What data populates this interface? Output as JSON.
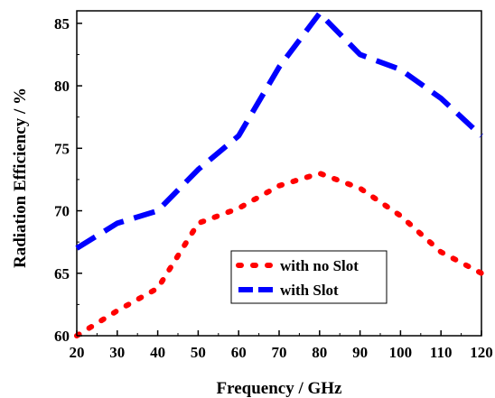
{
  "chart_data": {
    "type": "line",
    "xlabel": "Frequency / GHz",
    "ylabel": "Radiation Efficiency / %",
    "xlim": [
      20,
      120
    ],
    "ylim": [
      60,
      86
    ],
    "xticks": [
      20,
      30,
      40,
      50,
      60,
      70,
      80,
      90,
      100,
      110,
      120
    ],
    "yticks": [
      60,
      65,
      70,
      75,
      80,
      85
    ],
    "grid": false,
    "legend_position": "lower-center",
    "series": [
      {
        "name": "with no Slot",
        "color": "#ff0000",
        "style": "dotted",
        "x": [
          20,
          30,
          40,
          50,
          60,
          70,
          80,
          90,
          100,
          110,
          120
        ],
        "y": [
          60.0,
          62.0,
          63.8,
          69.0,
          70.2,
          72.0,
          73.0,
          71.8,
          69.6,
          66.7,
          65.0
        ]
      },
      {
        "name": "with Slot",
        "color": "#0000ff",
        "style": "dashed",
        "x": [
          20,
          30,
          40,
          50,
          60,
          70,
          80,
          90,
          100,
          110,
          120
        ],
        "y": [
          67.0,
          69.0,
          70.0,
          73.3,
          76.0,
          81.5,
          85.8,
          82.5,
          81.3,
          79.0,
          76.0
        ]
      }
    ]
  }
}
